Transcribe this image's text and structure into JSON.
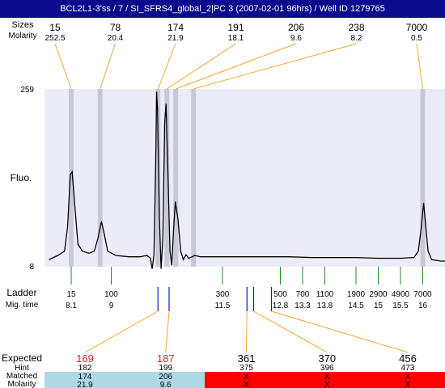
{
  "title": "BCL2L1-3'ss / 7 / SI_SFRS4_global_2|PC 3 (2007-02-01 96hrs) / Well ID 1279765",
  "labels": {
    "sizes_header": "Sizes",
    "ladder": "Ladder",
    "mig_time": "Mig. time",
    "expected": "Expected",
    "hint": "Hint",
    "matched": "Matched",
    "molarity": "Molarity"
  },
  "colors": {
    "title_bg": "#0a0a8c",
    "plot_bg": "#ececf8",
    "band": "#c8c8d8",
    "ladder_tick": "#1e8c1e",
    "mig_tick": "#1414c8",
    "connector": "#f0a830",
    "expected_red": "#dd2222",
    "matched_good": "#add8e6",
    "matched_bad": "#ff0000"
  },
  "chart_data": {
    "type": "line",
    "ylabel": "Fluo.",
    "y_ticks": [
      "259",
      "8"
    ],
    "ylim": [
      8,
      259
    ],
    "xlim": [
      7.5,
      16.5
    ],
    "peaks_top": [
      {
        "size": "15",
        "molarity": "252.5",
        "time": 8.1
      },
      {
        "size": "78",
        "molarity": "20.4",
        "time": 8.75
      },
      {
        "size": "174",
        "molarity": "21.9",
        "time": 10.05
      },
      {
        "size": "191",
        "molarity": "18.1",
        "time": 10.25
      },
      {
        "size": "206",
        "molarity": "9.6",
        "time": 10.45
      },
      {
        "size": "238",
        "molarity": "8.2",
        "time": 10.85
      },
      {
        "size": "7000",
        "molarity": "0.5",
        "time": 16.0
      }
    ],
    "electropherogram": [
      [
        7.6,
        18
      ],
      [
        7.8,
        24
      ],
      [
        7.95,
        30
      ],
      [
        8.02,
        65
      ],
      [
        8.08,
        138
      ],
      [
        8.12,
        142
      ],
      [
        8.18,
        95
      ],
      [
        8.25,
        40
      ],
      [
        8.35,
        30
      ],
      [
        8.5,
        27
      ],
      [
        8.62,
        30
      ],
      [
        8.7,
        48
      ],
      [
        8.78,
        72
      ],
      [
        8.84,
        55
      ],
      [
        8.92,
        30
      ],
      [
        9.1,
        24
      ],
      [
        9.4,
        22
      ],
      [
        9.65,
        22
      ],
      [
        9.8,
        24
      ],
      [
        9.88,
        20
      ],
      [
        9.92,
        5
      ],
      [
        9.96,
        25
      ],
      [
        10.0,
        160
      ],
      [
        10.02,
        255
      ],
      [
        10.04,
        230
      ],
      [
        10.08,
        80
      ],
      [
        10.12,
        5
      ],
      [
        10.16,
        50
      ],
      [
        10.2,
        210
      ],
      [
        10.23,
        238
      ],
      [
        10.27,
        150
      ],
      [
        10.32,
        30
      ],
      [
        10.36,
        10
      ],
      [
        10.4,
        60
      ],
      [
        10.44,
        100
      ],
      [
        10.5,
        75
      ],
      [
        10.56,
        30
      ],
      [
        10.62,
        18
      ],
      [
        10.68,
        25
      ],
      [
        10.74,
        20
      ],
      [
        10.82,
        22
      ],
      [
        10.88,
        24
      ],
      [
        11.0,
        22
      ],
      [
        11.5,
        22
      ],
      [
        12.0,
        22
      ],
      [
        12.5,
        22
      ],
      [
        13.0,
        22
      ],
      [
        13.5,
        21
      ],
      [
        14.0,
        21
      ],
      [
        14.5,
        21
      ],
      [
        15.0,
        20
      ],
      [
        15.5,
        20
      ],
      [
        15.8,
        21
      ],
      [
        15.9,
        30
      ],
      [
        15.96,
        60
      ],
      [
        16.02,
        98
      ],
      [
        16.06,
        70
      ],
      [
        16.12,
        30
      ],
      [
        16.2,
        18
      ],
      [
        16.4,
        16
      ],
      [
        16.5,
        16
      ]
    ],
    "bands": [
      8.1,
      8.75,
      10.05,
      10.25,
      10.45,
      10.85,
      16.0
    ],
    "ladder": [
      {
        "size": "15",
        "time": "8.1",
        "t": 8.1
      },
      {
        "size": "100",
        "time": "9",
        "t": 9.0
      },
      {
        "size": "300",
        "time": "11.5",
        "t": 11.5
      },
      {
        "size": "500",
        "time": "12.8",
        "t": 12.8
      },
      {
        "size": "700",
        "time": "13.3",
        "t": 13.3
      },
      {
        "size": "1100",
        "time": "13.8",
        "t": 13.8
      },
      {
        "size": "1900",
        "time": "14.5",
        "t": 14.5
      },
      {
        "size": "2900",
        "time": "15",
        "t": 15.0
      },
      {
        "size": "4900",
        "time": "15.5",
        "t": 15.5
      },
      {
        "size": "7000",
        "time": "16",
        "t": 16.0
      }
    ],
    "mig_markers": [
      10.05,
      10.3,
      12.05,
      12.2,
      12.6
    ],
    "expected": [
      {
        "expected": "169",
        "hint": "182",
        "matched": "174",
        "molarity": "21.9",
        "marker_t": 10.05,
        "ok": true
      },
      {
        "expected": "187",
        "hint": "199",
        "matched": "206",
        "molarity": "9.6",
        "marker_t": 10.3,
        "ok": true
      },
      {
        "expected": "361",
        "hint": "375",
        "matched": "X",
        "molarity": "X",
        "marker_t": 12.05,
        "ok": false
      },
      {
        "expected": "370",
        "hint": "396",
        "matched": "X",
        "molarity": "X",
        "marker_t": 12.2,
        "ok": false
      },
      {
        "expected": "456",
        "hint": "473",
        "matched": "X",
        "molarity": "X",
        "marker_t": 12.6,
        "ok": false
      }
    ]
  }
}
